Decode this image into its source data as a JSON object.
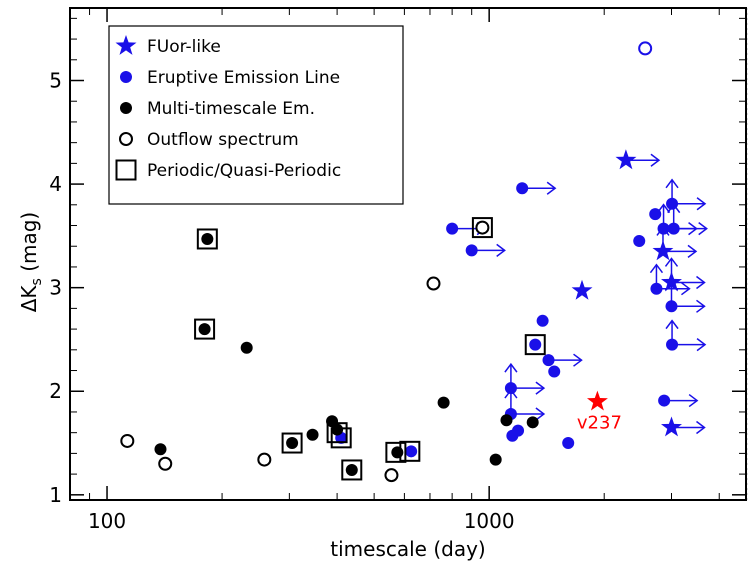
{
  "chart_data": {
    "type": "scatter",
    "xlabel": "timescale (day)",
    "ylabel_parts": [
      "ΔK",
      "s",
      " (mag)"
    ],
    "xscale": "log",
    "xlim": [
      80,
      4700
    ],
    "ylim": [
      0.95,
      5.7
    ],
    "xticks": [
      {
        "value": 100,
        "label": "100"
      },
      {
        "value": 1000,
        "label": "1000"
      }
    ],
    "yticks": [
      {
        "value": 1,
        "label": "1"
      },
      {
        "value": 2,
        "label": "2"
      },
      {
        "value": 3,
        "label": "3"
      },
      {
        "value": 4,
        "label": "4"
      },
      {
        "value": 5,
        "label": "5"
      }
    ],
    "legend": {
      "placement": "top-left",
      "entries": [
        {
          "marker": "star",
          "color": "#1a10e8",
          "label": "FUor-like"
        },
        {
          "marker": "dot",
          "color": "#1a10e8",
          "label": "Eruptive Emission Line"
        },
        {
          "marker": "dot",
          "color": "#000000",
          "label": "Multi-timescale Em."
        },
        {
          "marker": "ring",
          "color": "#000000",
          "label": "Outflow spectrum"
        },
        {
          "marker": "square",
          "color": "#000000",
          "label": "Periodic/Quasi-Periodic"
        }
      ]
    },
    "colors": {
      "blue": "#1a10e8",
      "black": "#000000",
      "red": "#ff0000"
    },
    "series": [
      {
        "marker": "star",
        "color": "#1a10e8",
        "points": [
          {
            "x": 1750,
            "y": 2.97
          },
          {
            "x": 2280,
            "y": 4.23,
            "arrow_right": true
          },
          {
            "x": 2850,
            "y": 3.35,
            "arrow_right": true,
            "arrow_up": true
          },
          {
            "x": 3000,
            "y": 3.05,
            "arrow_right": true,
            "arrow_up": true
          },
          {
            "x": 3000,
            "y": 1.65,
            "arrow_right": true
          }
        ]
      },
      {
        "marker": "dot",
        "color": "#1a10e8",
        "points": [
          {
            "x": 800,
            "y": 3.57,
            "arrow_right": true
          },
          {
            "x": 900,
            "y": 3.36,
            "arrow_right": true
          },
          {
            "x": 410,
            "y": 1.55
          },
          {
            "x": 625,
            "y": 1.42
          },
          {
            "x": 1140,
            "y": 2.03,
            "arrow_right": true,
            "arrow_up": true
          },
          {
            "x": 1140,
            "y": 1.78,
            "arrow_right": true,
            "arrow_up": true
          },
          {
            "x": 1150,
            "y": 1.57
          },
          {
            "x": 1190,
            "y": 1.62
          },
          {
            "x": 1220,
            "y": 3.96,
            "arrow_right": true
          },
          {
            "x": 1320,
            "y": 2.45
          },
          {
            "x": 1380,
            "y": 2.68
          },
          {
            "x": 1430,
            "y": 2.3,
            "arrow_right": true
          },
          {
            "x": 1480,
            "y": 2.19
          },
          {
            "x": 1610,
            "y": 1.5
          },
          {
            "x": 2470,
            "y": 3.45
          },
          {
            "x": 2870,
            "y": 1.91,
            "arrow_right": true
          },
          {
            "x": 2860,
            "y": 3.57,
            "arrow_right": true,
            "arrow_up": true
          },
          {
            "x": 2720,
            "y": 3.71
          },
          {
            "x": 2740,
            "y": 2.99,
            "arrow_right": true,
            "arrow_up": true
          },
          {
            "x": 3010,
            "y": 3.81,
            "arrow_right": true,
            "arrow_up": true
          },
          {
            "x": 3040,
            "y": 3.57,
            "arrow_right": true,
            "arrow_up": true
          },
          {
            "x": 3000,
            "y": 2.82,
            "arrow_right": true,
            "arrow_up": true
          },
          {
            "x": 3010,
            "y": 2.45,
            "arrow_right": true,
            "arrow_up": true
          }
        ]
      },
      {
        "marker": "dot",
        "color": "#000000",
        "points": [
          {
            "x": 138,
            "y": 1.44
          },
          {
            "x": 183,
            "y": 3.47
          },
          {
            "x": 180,
            "y": 2.6
          },
          {
            "x": 232,
            "y": 2.42
          },
          {
            "x": 305,
            "y": 1.5
          },
          {
            "x": 345,
            "y": 1.58
          },
          {
            "x": 388,
            "y": 1.71
          },
          {
            "x": 400,
            "y": 1.63
          },
          {
            "x": 437,
            "y": 1.24
          },
          {
            "x": 575,
            "y": 1.41
          },
          {
            "x": 760,
            "y": 1.89
          },
          {
            "x": 1040,
            "y": 1.34
          },
          {
            "x": 1110,
            "y": 1.72
          },
          {
            "x": 1300,
            "y": 1.7
          }
        ]
      },
      {
        "marker": "ring",
        "color": "#000000",
        "points": [
          {
            "x": 113,
            "y": 1.52
          },
          {
            "x": 142,
            "y": 1.3
          },
          {
            "x": 258,
            "y": 1.34
          },
          {
            "x": 555,
            "y": 1.19
          },
          {
            "x": 715,
            "y": 3.04
          },
          {
            "x": 960,
            "y": 3.58
          }
        ]
      },
      {
        "marker": "ring",
        "color": "#1a10e8",
        "points": [
          {
            "x": 2560,
            "y": 5.31
          }
        ]
      },
      {
        "marker": "square",
        "color": "#000000",
        "points": [
          {
            "x": 183,
            "y": 3.47
          },
          {
            "x": 180,
            "y": 2.6
          },
          {
            "x": 305,
            "y": 1.5
          },
          {
            "x": 400,
            "y": 1.6
          },
          {
            "x": 410,
            "y": 1.55
          },
          {
            "x": 437,
            "y": 1.24
          },
          {
            "x": 570,
            "y": 1.41
          },
          {
            "x": 620,
            "y": 1.42
          },
          {
            "x": 960,
            "y": 3.58
          },
          {
            "x": 1320,
            "y": 2.45
          }
        ]
      },
      {
        "marker": "star",
        "color": "#ff0000",
        "points": [
          {
            "x": 1920,
            "y": 1.9,
            "label": "v237"
          }
        ]
      }
    ]
  }
}
